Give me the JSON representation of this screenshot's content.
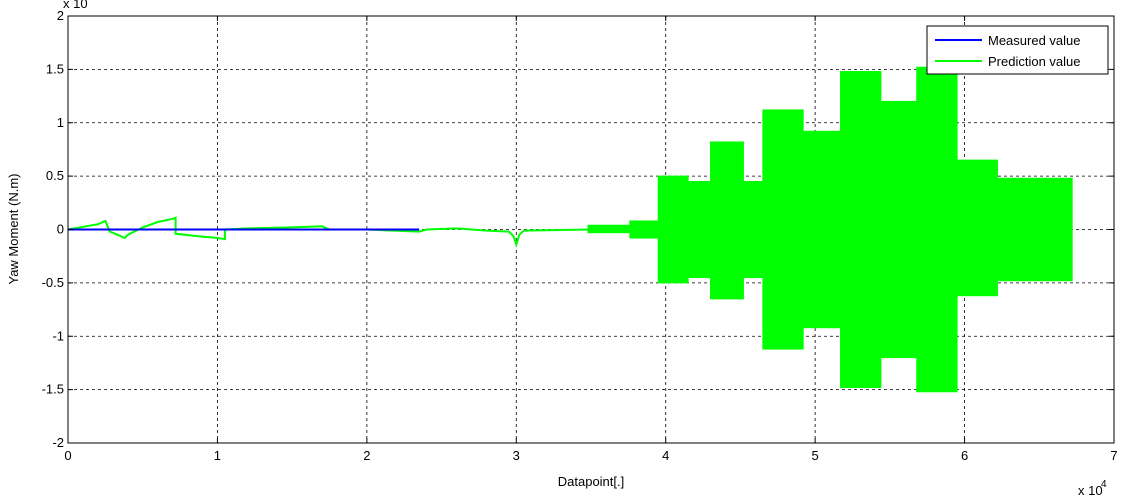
{
  "chart_data": {
    "type": "line",
    "xlabel": "Datapoint[.]",
    "ylabel": "Yaw Moment (N.m)",
    "x_exponent_label": "x 10",
    "x_exponent_power": "4",
    "y_exponent_label": "x 10",
    "xlim": [
      0,
      7
    ],
    "ylim": [
      -2,
      2
    ],
    "x_ticks": [
      "0",
      "1",
      "2",
      "3",
      "4",
      "5",
      "6",
      "7"
    ],
    "y_ticks": [
      "-2",
      "-1.5",
      "-1",
      "-0.5",
      "0",
      "0.5",
      "1",
      "1.5",
      "2"
    ],
    "grid": true,
    "grid_style": "dashed",
    "legend_position": "top-right",
    "series": [
      {
        "name": "Measured value",
        "color": "#0000ff",
        "style": "line",
        "points": [
          [
            0,
            0
          ],
          [
            2.35,
            0
          ],
          [
            2.35,
            0
          ]
        ]
      },
      {
        "name": "Prediction value",
        "color": "#00ff00",
        "style": "line",
        "points": [
          [
            0,
            0
          ],
          [
            0.2,
            0.05
          ],
          [
            0.25,
            0.08
          ],
          [
            0.28,
            -0.02
          ],
          [
            0.35,
            -0.06
          ],
          [
            0.38,
            -0.08
          ],
          [
            0.4,
            -0.05
          ],
          [
            0.5,
            0.02
          ],
          [
            0.6,
            0.07
          ],
          [
            0.7,
            0.1
          ],
          [
            0.72,
            0.11
          ],
          [
            0.72,
            -0.04
          ],
          [
            0.85,
            -0.06
          ],
          [
            1.0,
            -0.08
          ],
          [
            1.05,
            -0.09
          ],
          [
            1.05,
            0.0
          ],
          [
            1.2,
            0.01
          ],
          [
            1.5,
            0.02
          ],
          [
            1.7,
            0.03
          ],
          [
            1.75,
            0.0
          ],
          [
            2.0,
            0.0
          ],
          [
            2.35,
            -0.02
          ],
          [
            2.4,
            0.0
          ],
          [
            2.6,
            0.01
          ],
          [
            2.8,
            -0.01
          ],
          [
            2.95,
            -0.02
          ],
          [
            2.98,
            -0.06
          ],
          [
            3.0,
            -0.14
          ],
          [
            3.02,
            -0.05
          ],
          [
            3.05,
            -0.01
          ],
          [
            3.5,
            0.0
          ],
          [
            3.75,
            0.0
          ]
        ],
        "bands": [
          {
            "x0": 3.48,
            "x1": 3.76,
            "y_min": -0.03,
            "y_max": 0.04
          },
          {
            "x0": 3.76,
            "x1": 3.95,
            "y_min": -0.08,
            "y_max": 0.08
          },
          {
            "x0": 3.95,
            "x1": 4.15,
            "y_min": -0.5,
            "y_max": 0.5
          },
          {
            "x0": 4.15,
            "x1": 4.3,
            "y_min": -0.45,
            "y_max": 0.45
          },
          {
            "x0": 4.3,
            "x1": 4.52,
            "y_min": -0.65,
            "y_max": 0.82
          },
          {
            "x0": 4.52,
            "x1": 4.65,
            "y_min": -0.45,
            "y_max": 0.45
          },
          {
            "x0": 4.65,
            "x1": 4.92,
            "y_min": -1.12,
            "y_max": 1.12
          },
          {
            "x0": 4.92,
            "x1": 5.17,
            "y_min": -0.92,
            "y_max": 0.92
          },
          {
            "x0": 5.17,
            "x1": 5.44,
            "y_min": -1.48,
            "y_max": 1.48
          },
          {
            "x0": 5.44,
            "x1": 5.68,
            "y_min": -1.2,
            "y_max": 1.2
          },
          {
            "x0": 5.68,
            "x1": 5.95,
            "y_min": -1.52,
            "y_max": 1.52
          },
          {
            "x0": 5.95,
            "x1": 6.22,
            "y_min": -0.62,
            "y_max": 0.65
          },
          {
            "x0": 6.22,
            "x1": 6.72,
            "y_min": -0.48,
            "y_max": 0.48
          }
        ]
      }
    ]
  }
}
